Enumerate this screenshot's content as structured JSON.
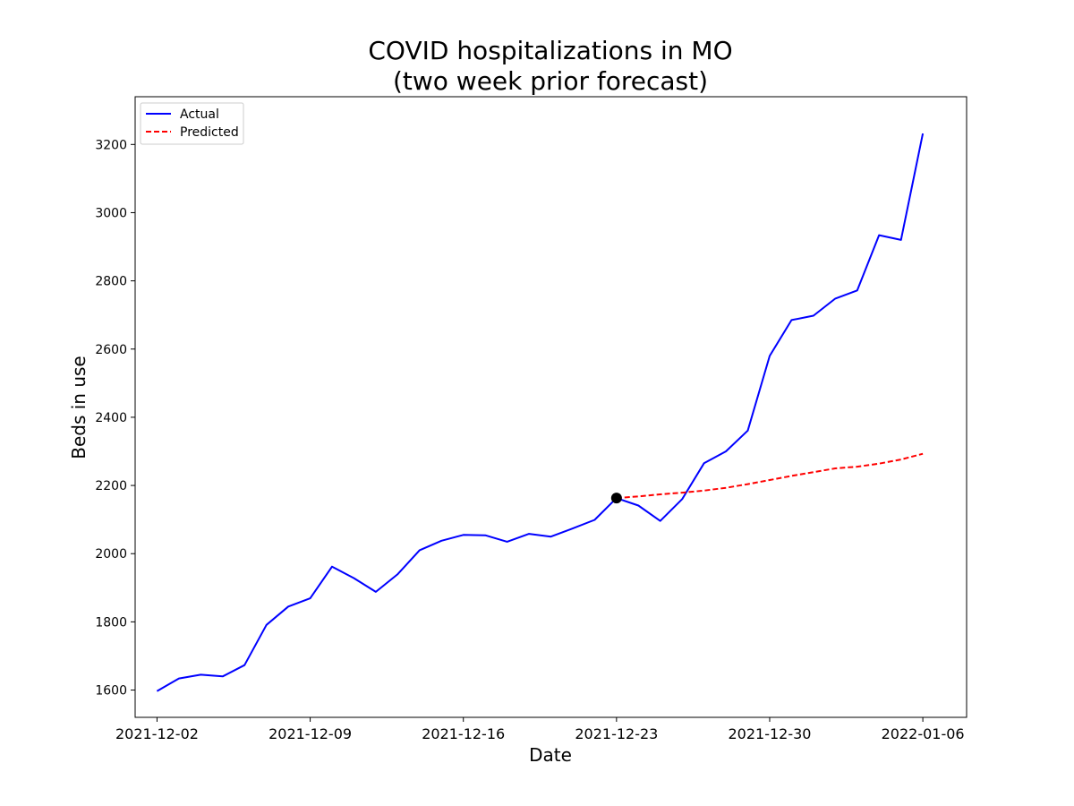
{
  "chart_data": {
    "type": "line",
    "title": [
      "COVID hospitalizations in MO",
      "(two week prior forecast)"
    ],
    "xlabel": "Date",
    "ylabel": "Beds in use",
    "xlim": [
      "2021-12-01",
      "2022-01-08"
    ],
    "ylim": [
      1520,
      3340
    ],
    "x_ticks": [
      "2021-12-02",
      "2021-12-09",
      "2021-12-16",
      "2021-12-23",
      "2021-12-30",
      "2022-01-06"
    ],
    "y_ticks": [
      1600,
      1800,
      2000,
      2200,
      2400,
      2600,
      2800,
      3000,
      3200
    ],
    "grid": false,
    "legend": "top-left",
    "series": [
      {
        "name": "Actual",
        "color": "#0000ff",
        "style": "solid",
        "x": [
          "2021-12-02",
          "2021-12-03",
          "2021-12-04",
          "2021-12-05",
          "2021-12-06",
          "2021-12-07",
          "2021-12-08",
          "2021-12-09",
          "2021-12-10",
          "2021-12-11",
          "2021-12-12",
          "2021-12-13",
          "2021-12-14",
          "2021-12-15",
          "2021-12-16",
          "2021-12-17",
          "2021-12-18",
          "2021-12-19",
          "2021-12-20",
          "2021-12-21",
          "2021-12-22",
          "2021-12-23",
          "2021-12-24",
          "2021-12-25",
          "2021-12-26",
          "2021-12-27",
          "2021-12-28",
          "2021-12-29",
          "2021-12-30",
          "2021-12-31",
          "2022-01-01",
          "2022-01-02",
          "2022-01-03",
          "2022-01-04",
          "2022-01-05",
          "2022-01-06"
        ],
        "values": [
          1597,
          1634,
          1645,
          1640,
          1673,
          1791,
          1845,
          1869,
          1962,
          1928,
          1888,
          1940,
          2010,
          2038,
          2055,
          2054,
          2035,
          2058,
          2050,
          2074,
          2099,
          2163,
          2141,
          2096,
          2160,
          2265,
          2300,
          2361,
          2580,
          2685,
          2698,
          2748,
          2772,
          2934,
          2920,
          3232
        ]
      },
      {
        "name": "Predicted",
        "color": "#ff0000",
        "style": "dashed",
        "x": [
          "2021-12-23",
          "2021-12-24",
          "2021-12-25",
          "2021-12-26",
          "2021-12-27",
          "2021-12-28",
          "2021-12-29",
          "2021-12-30",
          "2021-12-31",
          "2022-01-01",
          "2022-01-02",
          "2022-01-03",
          "2022-01-04",
          "2022-01-05",
          "2022-01-06"
        ],
        "values": [
          2163,
          2168,
          2174,
          2179,
          2185,
          2193,
          2204,
          2216,
          2228,
          2239,
          2250,
          2255,
          2264,
          2276,
          2293
        ]
      }
    ],
    "marker": {
      "x": "2021-12-23",
      "value": 2163,
      "color": "#000000"
    }
  }
}
